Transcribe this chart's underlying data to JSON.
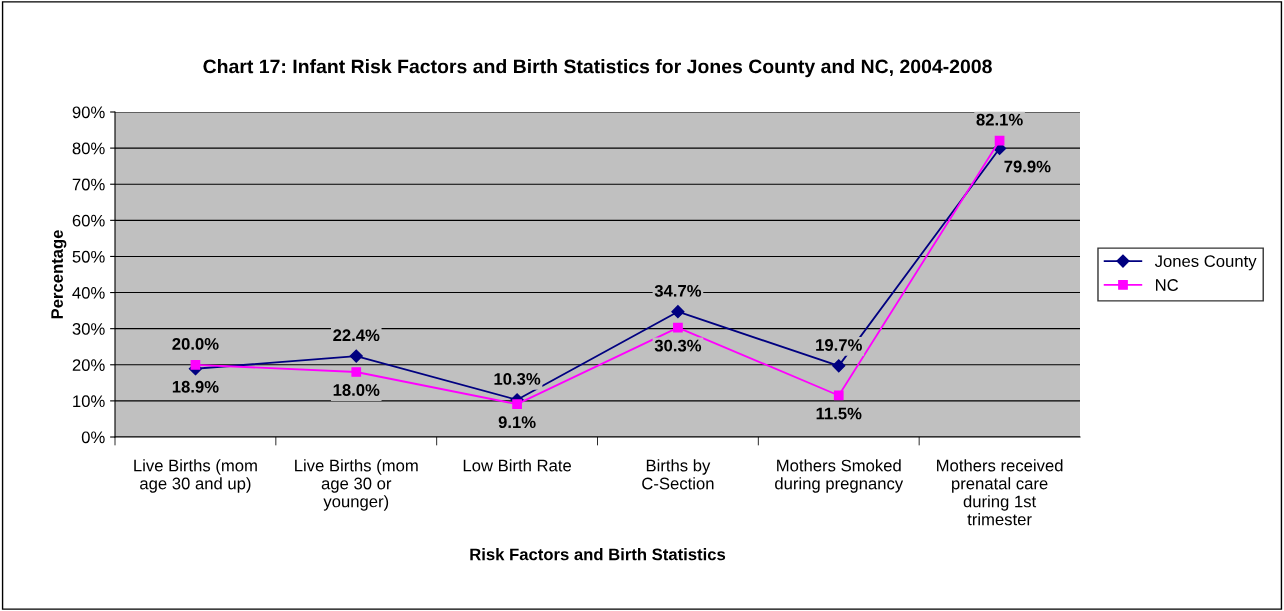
{
  "chart_data": {
    "type": "line",
    "title": "Chart 17: Infant Risk Factors and Birth Statistics for Jones County and NC, 2004-2008",
    "xlabel": "Risk Factors and Birth Statistics",
    "ylabel": "Percentage",
    "categories": [
      "Live Births (mom age 30 and up)",
      "Live Births (mom age 30 or younger)",
      "Low Birth Rate",
      "Births by C-Section",
      "Mothers Smoked during pregnancy",
      "Mothers received prenatal care during 1st trimester"
    ],
    "series": [
      {
        "name": "Jones County",
        "color": "#000080",
        "marker": "diamond",
        "values": [
          18.9,
          22.4,
          10.3,
          34.7,
          19.7,
          79.9
        ],
        "value_labels": [
          "18.9%",
          "22.4%",
          "10.3%",
          "34.7%",
          "19.7%",
          "79.9%"
        ]
      },
      {
        "name": "NC",
        "color": "#ff00ff",
        "marker": "square",
        "values": [
          20.0,
          18.0,
          9.1,
          30.3,
          11.5,
          82.1
        ],
        "value_labels": [
          "20.0%",
          "18.0%",
          "9.1%",
          "30.3%",
          "11.5%",
          "82.1%"
        ]
      }
    ],
    "ylim": [
      0,
      90
    ],
    "yticks": [
      {
        "value": 0,
        "label": "0%"
      },
      {
        "value": 10,
        "label": "10%"
      },
      {
        "value": 20,
        "label": "20%"
      },
      {
        "value": 30,
        "label": "30%"
      },
      {
        "value": 40,
        "label": "40%"
      },
      {
        "value": 50,
        "label": "50%"
      },
      {
        "value": 60,
        "label": "60%"
      },
      {
        "value": 70,
        "label": "70%"
      },
      {
        "value": 80,
        "label": "80%"
      },
      {
        "value": 90,
        "label": "90%"
      }
    ],
    "grid": "y",
    "legend": "right",
    "line_style": "solid"
  }
}
